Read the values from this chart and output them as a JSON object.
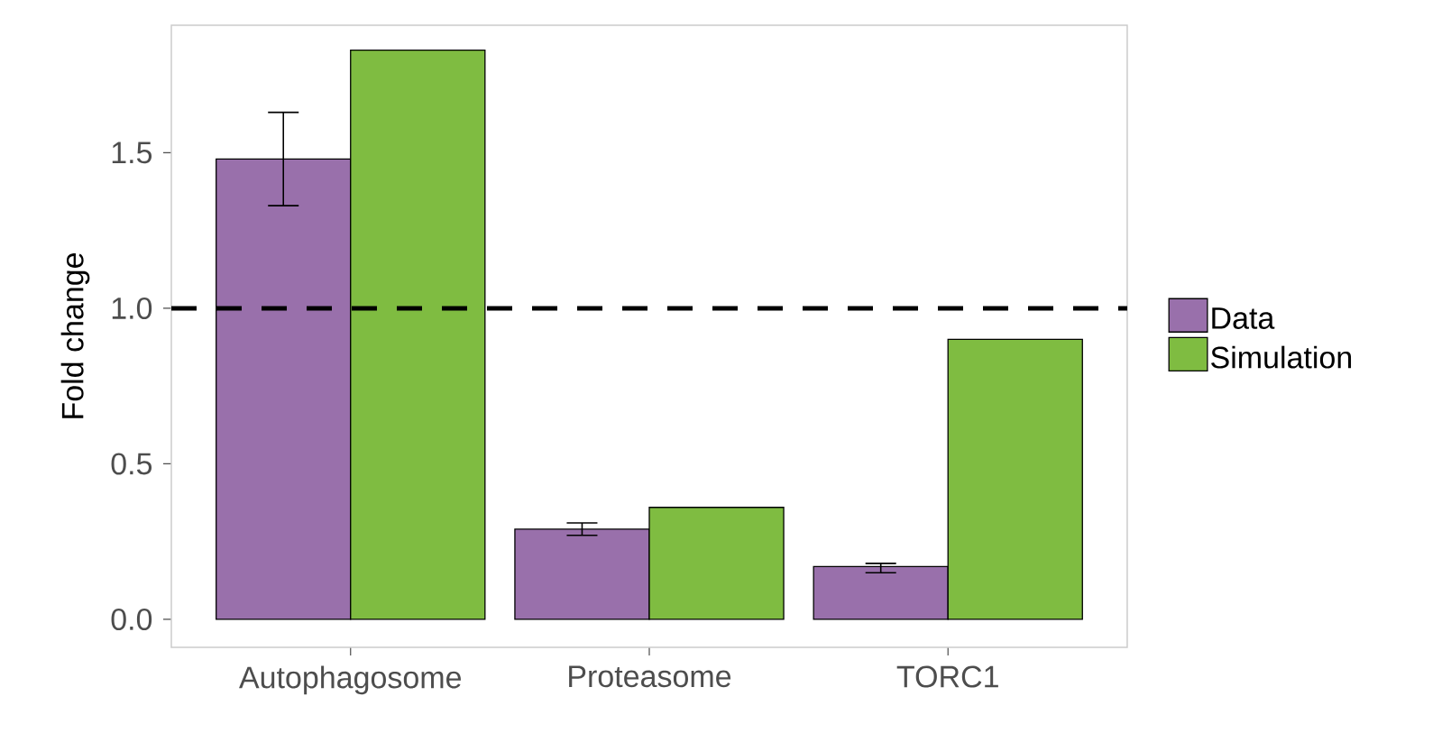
{
  "chart_data": {
    "type": "bar",
    "ylabel": "Fold change",
    "categories": [
      "Autophagosome",
      "Proteasome",
      "TORC1"
    ],
    "series": [
      {
        "name": "Data",
        "color": "#9970ab",
        "values": [
          1.48,
          0.29,
          0.17
        ],
        "errors": [
          [
            1.33,
            1.63
          ],
          [
            0.27,
            0.31
          ],
          [
            0.15,
            0.18
          ]
        ]
      },
      {
        "name": "Simulation",
        "color": "#7fbc41",
        "values": [
          1.83,
          0.36,
          0.9
        ]
      }
    ],
    "ylim": [
      -0.09,
      1.91
    ],
    "yticks": [
      {
        "value": 0,
        "label": "0.0"
      },
      {
        "value": 0.5,
        "label": "0.5"
      },
      {
        "value": 1,
        "label": "1.0"
      },
      {
        "value": 1.5,
        "label": "1.5"
      }
    ],
    "ref_lines": [
      {
        "axis": "y",
        "value": 1,
        "line_style": "dashed",
        "color": "#000000"
      }
    ],
    "legend": "right"
  }
}
